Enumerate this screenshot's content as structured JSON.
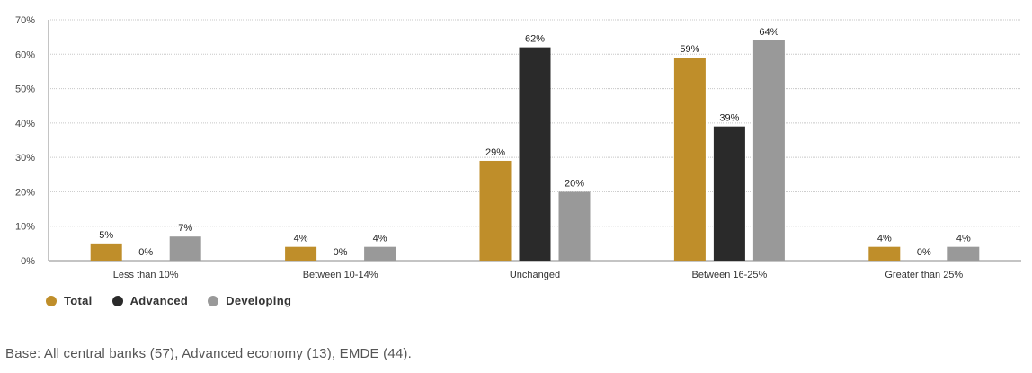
{
  "chart_data": {
    "type": "bar",
    "categories": [
      "Less than 10%",
      "Between 10-14%",
      "Unchanged",
      "Between 16-25%",
      "Greater than 25%"
    ],
    "series": [
      {
        "name": "Total",
        "values": [
          5,
          4,
          29,
          59,
          4
        ],
        "labels": [
          "5%",
          "4%",
          "29%",
          "59%",
          "4%"
        ],
        "color": "#bf8e2a"
      },
      {
        "name": "Advanced",
        "values": [
          0,
          0,
          62,
          39,
          0
        ],
        "labels": [
          "0%",
          "0%",
          "62%",
          "39%",
          "0%"
        ],
        "color": "#2a2a2a"
      },
      {
        "name": "Developing",
        "values": [
          7,
          4,
          20,
          64,
          4
        ],
        "labels": [
          "7%",
          "4%",
          "20%",
          "64%",
          "4%"
        ],
        "color": "#999999"
      }
    ],
    "ylim": [
      0,
      70
    ],
    "yticks": [
      0,
      10,
      20,
      30,
      40,
      50,
      60,
      70
    ],
    "ytick_labels": [
      "0%",
      "10%",
      "20%",
      "30%",
      "40%",
      "50%",
      "60%",
      "70%"
    ],
    "grid": true,
    "legend_position": "bottom-left"
  },
  "legend": [
    {
      "label": "Total",
      "color": "#bf8e2a"
    },
    {
      "label": "Advanced",
      "color": "#2a2a2a"
    },
    {
      "label": "Developing",
      "color": "#999999"
    }
  ],
  "footnote": "Base: All central banks (57), Advanced economy (13), EMDE (44)."
}
